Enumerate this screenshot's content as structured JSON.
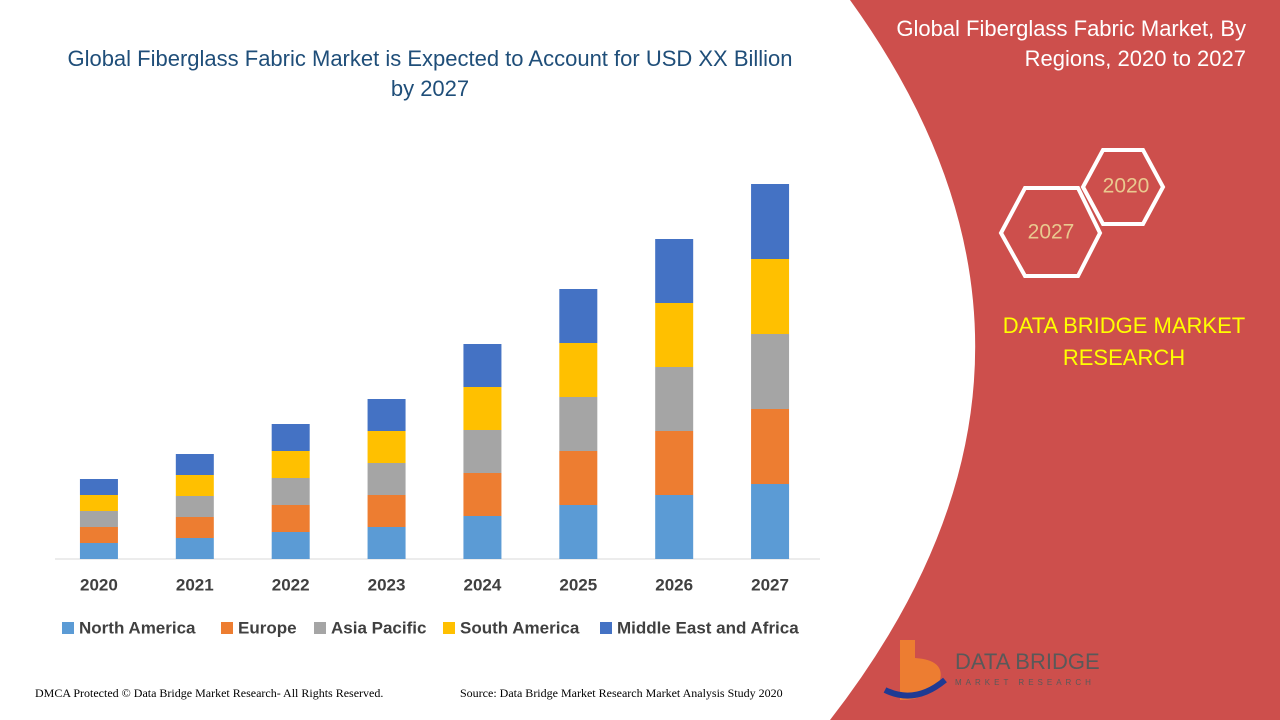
{
  "chart_data": {
    "type": "bar",
    "stacked": true,
    "title": "Global Fiberglass Fabric Market is Expected to Account for USD XX Billion by 2027",
    "categories": [
      "2020",
      "2021",
      "2022",
      "2023",
      "2024",
      "2025",
      "2026",
      "2027"
    ],
    "series": [
      {
        "name": "North America",
        "color": "#5b9bd5",
        "values": [
          16,
          21,
          27,
          32,
          43,
          54,
          64,
          75
        ]
      },
      {
        "name": "Europe",
        "color": "#ed7d31",
        "values": [
          16,
          21,
          27,
          32,
          43,
          54,
          64,
          75
        ]
      },
      {
        "name": "Asia Pacific",
        "color": "#a5a5a5",
        "values": [
          16,
          21,
          27,
          32,
          43,
          54,
          64,
          75
        ]
      },
      {
        "name": "South America",
        "color": "#ffc000",
        "values": [
          16,
          21,
          27,
          32,
          43,
          54,
          64,
          75
        ]
      },
      {
        "name": "Middle East and Africa",
        "color": "#4472c4",
        "values": [
          16,
          21,
          27,
          32,
          43,
          54,
          64,
          75
        ]
      }
    ],
    "ylim": [
      0,
      400
    ],
    "legend": "bottom"
  },
  "panel": {
    "title": "Global Fiberglass Fabric Market, By Regions, 2020 to 2027",
    "hex_top": "2020",
    "hex_bottom": "2027",
    "brand": "DATA BRIDGE MARKET RESEARCH",
    "logo": "DATA BRIDGE",
    "logo_sub": "MARKET RESEARCH"
  },
  "footer": {
    "left": "DMCA Protected © Data Bridge Market Research- All Rights Reserved.",
    "right": "Source: Data Bridge Market Research Market Analysis Study 2020"
  }
}
